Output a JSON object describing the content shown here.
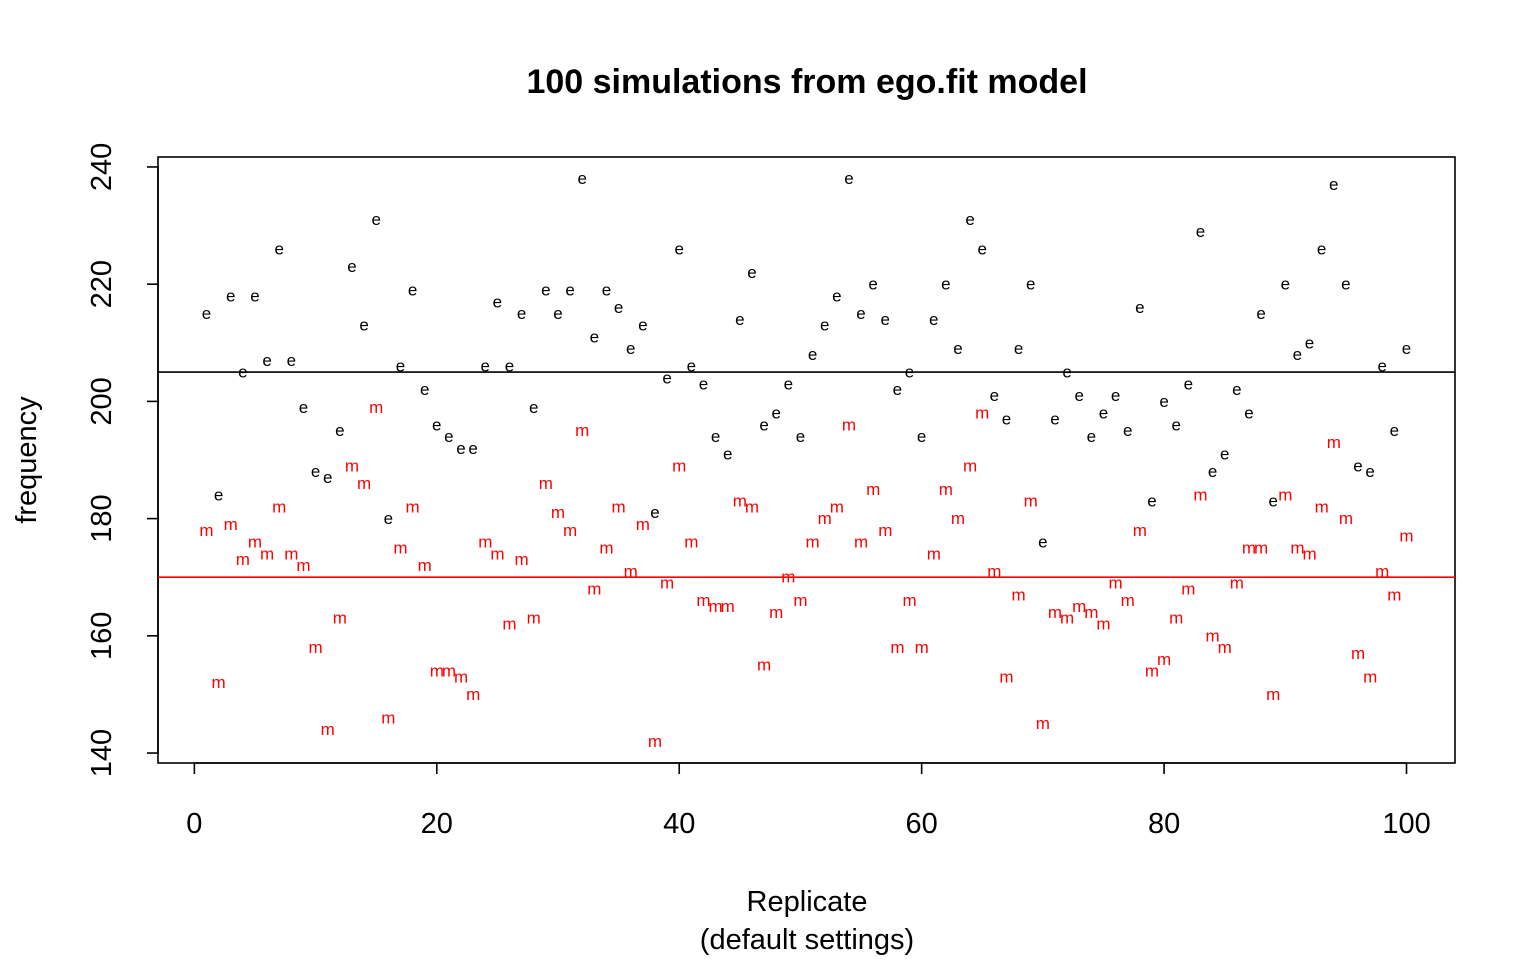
{
  "chart_data": {
    "type": "scatter",
    "title": "100 simulations from ego.fit model",
    "xlabel": "Replicate",
    "xlabel_sub": "(default settings)",
    "ylabel": "frequency",
    "xlim": [
      -3,
      104
    ],
    "ylim": [
      138.3,
      241.7
    ],
    "x_ticks": [
      0,
      20,
      40,
      60,
      80,
      100
    ],
    "y_ticks": [
      140,
      160,
      180,
      200,
      220,
      240
    ],
    "grid": false,
    "legend": "none",
    "hlines": [
      {
        "series": "e",
        "y": 205,
        "color": "#000000"
      },
      {
        "series": "m",
        "y": 170,
        "color": "#ff0000"
      }
    ],
    "series": [
      {
        "marker": "e",
        "color": "#000000",
        "x": [
          1,
          2,
          3,
          4,
          5,
          6,
          7,
          8,
          9,
          10,
          11,
          12,
          13,
          14,
          15,
          16,
          17,
          18,
          19,
          20,
          21,
          22,
          23,
          24,
          25,
          26,
          27,
          28,
          29,
          30,
          31,
          32,
          33,
          34,
          35,
          36,
          37,
          38,
          39,
          40,
          41,
          42,
          43,
          44,
          45,
          46,
          47,
          48,
          49,
          50,
          51,
          52,
          53,
          54,
          55,
          56,
          57,
          58,
          59,
          60,
          61,
          62,
          63,
          64,
          65,
          66,
          67,
          68,
          69,
          70,
          71,
          72,
          73,
          74,
          75,
          76,
          77,
          78,
          79,
          80,
          81,
          82,
          83,
          84,
          85,
          86,
          87,
          88,
          89,
          90,
          91,
          92,
          93,
          94,
          95,
          96,
          97,
          98,
          99,
          100
        ],
        "y": [
          215,
          184,
          218,
          205,
          218,
          207,
          226,
          207,
          199,
          188,
          187,
          195,
          223,
          213,
          231,
          180,
          206,
          219,
          202,
          196,
          194,
          192,
          192,
          206,
          217,
          206,
          215,
          199,
          219,
          215,
          219,
          238,
          211,
          219,
          216,
          209,
          213,
          181,
          204,
          226,
          206,
          203,
          194,
          191,
          214,
          222,
          196,
          198,
          203,
          194,
          208,
          213,
          218,
          238,
          215,
          220,
          214,
          202,
          205,
          194,
          214,
          220,
          209,
          231,
          226,
          201,
          197,
          209,
          220,
          176,
          197,
          205,
          201,
          194,
          198,
          201,
          195,
          216,
          183,
          200,
          196,
          203,
          229,
          188,
          191,
          202,
          198,
          215,
          183,
          220,
          208,
          210,
          226,
          237,
          220,
          189,
          188,
          206,
          195,
          209
        ]
      },
      {
        "marker": "m",
        "color": "#ff0000",
        "x": [
          1,
          2,
          3,
          4,
          5,
          6,
          7,
          8,
          9,
          10,
          11,
          12,
          13,
          14,
          15,
          16,
          17,
          18,
          19,
          20,
          21,
          22,
          23,
          24,
          25,
          26,
          27,
          28,
          29,
          30,
          31,
          32,
          33,
          34,
          35,
          36,
          37,
          38,
          39,
          40,
          41,
          42,
          43,
          44,
          45,
          46,
          47,
          48,
          49,
          50,
          51,
          52,
          53,
          54,
          55,
          56,
          57,
          58,
          59,
          60,
          61,
          62,
          63,
          64,
          65,
          66,
          67,
          68,
          69,
          70,
          71,
          72,
          73,
          74,
          75,
          76,
          77,
          78,
          79,
          80,
          81,
          82,
          83,
          84,
          85,
          86,
          87,
          88,
          89,
          90,
          91,
          92,
          93,
          94,
          95,
          96,
          97,
          98,
          99,
          100
        ],
        "y": [
          178,
          152,
          179,
          173,
          176,
          174,
          182,
          174,
          172,
          158,
          144,
          163,
          189,
          186,
          199,
          146,
          175,
          182,
          172,
          154,
          154,
          153,
          150,
          176,
          174,
          162,
          173,
          163,
          186,
          181,
          178,
          195,
          168,
          175,
          182,
          171,
          179,
          142,
          169,
          189,
          176,
          166,
          165,
          165,
          183,
          182,
          155,
          164,
          170,
          166,
          176,
          180,
          182,
          196,
          176,
          185,
          178,
          158,
          166,
          158,
          174,
          185,
          180,
          189,
          198,
          171,
          153,
          167,
          183,
          145,
          164,
          163,
          165,
          164,
          162,
          169,
          166,
          178,
          154,
          156,
          163,
          168,
          184,
          160,
          158,
          169,
          175,
          175,
          150,
          184,
          175,
          174,
          182,
          193,
          180,
          157,
          153,
          171,
          167,
          177
        ]
      }
    ]
  }
}
